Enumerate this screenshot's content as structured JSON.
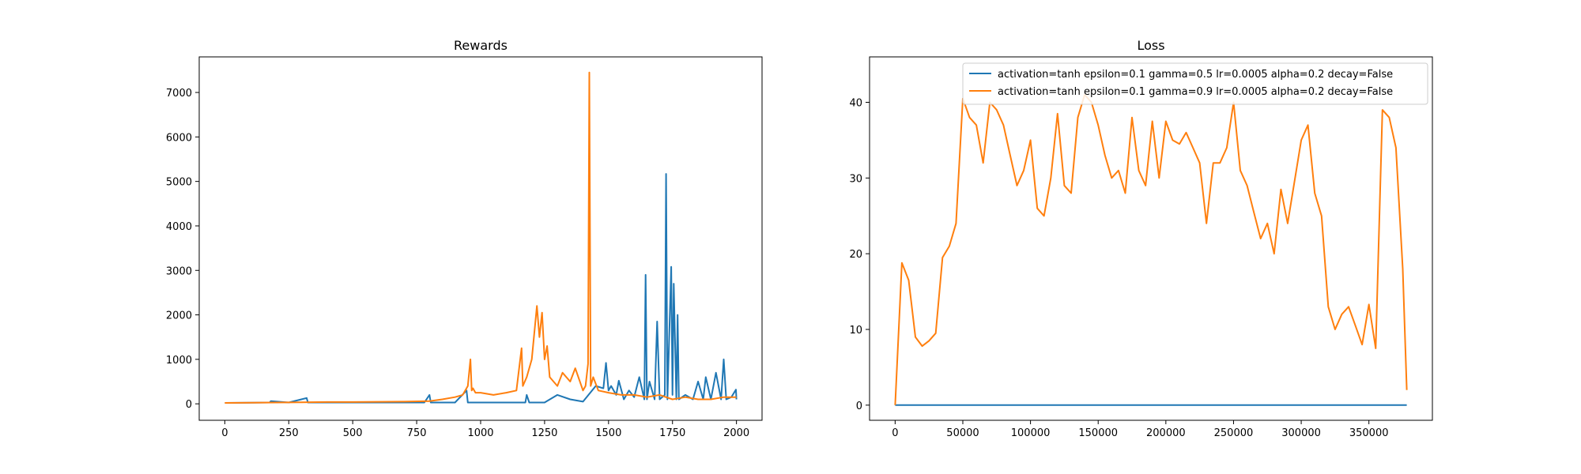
{
  "colors": {
    "series_blue": "#1f77b4",
    "series_orange": "#ff7f0e"
  },
  "chart_data": [
    {
      "type": "line",
      "title": "Rewards",
      "xlabel": "",
      "ylabel": "",
      "xlim": [
        -100,
        2100
      ],
      "ylim": [
        -370,
        7800
      ],
      "xticks": [
        0,
        250,
        500,
        750,
        1000,
        1250,
        1500,
        1750,
        2000
      ],
      "xtick_labels": [
        "0",
        "250",
        "500",
        "750",
        "1000",
        "1250",
        "1500",
        "1750",
        "2000"
      ],
      "yticks": [
        0,
        1000,
        2000,
        3000,
        4000,
        5000,
        6000,
        7000
      ],
      "ytick_labels": [
        "0",
        "1000",
        "2000",
        "3000",
        "4000",
        "5000",
        "6000",
        "7000"
      ],
      "grid": false,
      "series": [
        {
          "color": "#1f77b4",
          "x": [
            0,
            100,
            175,
            180,
            250,
            320,
            325,
            400,
            500,
            600,
            700,
            780,
            800,
            805,
            850,
            900,
            945,
            950,
            1000,
            1100,
            1175,
            1180,
            1190,
            1250,
            1300,
            1350,
            1400,
            1450,
            1480,
            1490,
            1500,
            1510,
            1530,
            1540,
            1560,
            1580,
            1600,
            1620,
            1640,
            1645,
            1650,
            1660,
            1680,
            1690,
            1700,
            1720,
            1725,
            1730,
            1745,
            1750,
            1755,
            1765,
            1770,
            1775,
            1800,
            1830,
            1850,
            1870,
            1880,
            1900,
            1920,
            1940,
            1950,
            1960,
            1980,
            1998,
            2000
          ],
          "y": [
            20,
            25,
            30,
            60,
            30,
            130,
            30,
            30,
            30,
            30,
            30,
            30,
            200,
            30,
            30,
            30,
            300,
            30,
            30,
            30,
            30,
            200,
            30,
            30,
            200,
            100,
            50,
            400,
            350,
            920,
            300,
            400,
            200,
            520,
            100,
            300,
            150,
            600,
            100,
            2900,
            100,
            500,
            100,
            1850,
            100,
            200,
            5170,
            100,
            3080,
            200,
            2700,
            100,
            2000,
            100,
            200,
            100,
            500,
            100,
            600,
            100,
            700,
            100,
            1000,
            100,
            150,
            320,
            100
          ]
        },
        {
          "color": "#ff7f0e",
          "x": [
            0,
            100,
            200,
            300,
            400,
            500,
            600,
            700,
            800,
            850,
            900,
            930,
            950,
            960,
            965,
            970,
            980,
            1000,
            1050,
            1100,
            1140,
            1160,
            1165,
            1180,
            1200,
            1220,
            1230,
            1240,
            1250,
            1260,
            1270,
            1300,
            1320,
            1350,
            1370,
            1400,
            1410,
            1420,
            1425,
            1430,
            1440,
            1460,
            1500,
            1550,
            1600,
            1650,
            1700,
            1750,
            1800,
            1850,
            1900,
            1950,
            2000
          ],
          "y": [
            20,
            25,
            30,
            35,
            40,
            40,
            45,
            50,
            60,
            100,
            150,
            200,
            400,
            1000,
            300,
            350,
            250,
            250,
            200,
            250,
            300,
            1250,
            400,
            600,
            1000,
            2200,
            1500,
            2050,
            1000,
            1300,
            600,
            400,
            700,
            500,
            800,
            300,
            400,
            900,
            7450,
            400,
            600,
            300,
            250,
            200,
            200,
            150,
            200,
            100,
            150,
            100,
            100,
            150,
            150
          ]
        }
      ]
    },
    {
      "type": "line",
      "title": "Loss",
      "xlabel": "",
      "ylabel": "",
      "xlim": [
        -18900,
        396900
      ],
      "ylim": [
        -2,
        46
      ],
      "xticks": [
        0,
        50000,
        100000,
        150000,
        200000,
        250000,
        300000,
        350000
      ],
      "xtick_labels": [
        "0",
        "50000",
        "100000",
        "150000",
        "200000",
        "250000",
        "300000",
        "350000"
      ],
      "yticks": [
        0,
        10,
        20,
        30,
        40
      ],
      "ytick_labels": [
        "0",
        "10",
        "20",
        "30",
        "40"
      ],
      "grid": false,
      "legend": "upper right",
      "series": [
        {
          "name": "activation=tanh epsilon=0.1 gamma=0.5 lr=0.0005 alpha=0.2 decay=False",
          "color": "#1f77b4",
          "x": [
            0,
            378000
          ],
          "y": [
            0,
            0
          ]
        },
        {
          "name": "activation=tanh epsilon=0.1 gamma=0.9 lr=0.0005 alpha=0.2 decay=False",
          "color": "#ff7f0e",
          "x": [
            0,
            5000,
            10000,
            15000,
            20000,
            25000,
            30000,
            35000,
            40000,
            45000,
            50000,
            55000,
            60000,
            65000,
            70000,
            75000,
            80000,
            85000,
            90000,
            95000,
            100000,
            105000,
            110000,
            115000,
            120000,
            125000,
            130000,
            135000,
            140000,
            145000,
            150000,
            155000,
            160000,
            165000,
            170000,
            175000,
            180000,
            185000,
            190000,
            195000,
            200000,
            205000,
            210000,
            215000,
            220000,
            225000,
            230000,
            235000,
            240000,
            245000,
            250000,
            255000,
            260000,
            265000,
            270000,
            275000,
            280000,
            285000,
            290000,
            295000,
            300000,
            305000,
            310000,
            315000,
            320000,
            325000,
            330000,
            335000,
            340000,
            345000,
            350000,
            355000,
            360000,
            365000,
            370000,
            375000,
            378000
          ],
          "y": [
            0,
            18.8,
            16.5,
            9,
            7.8,
            8.5,
            9.5,
            19.5,
            21,
            24,
            40.5,
            38,
            37,
            32,
            40,
            39,
            37,
            33,
            29,
            31,
            35,
            26,
            25,
            30,
            38.5,
            29,
            28,
            38,
            41,
            40,
            37,
            33,
            30,
            31,
            28,
            38,
            31,
            29,
            37.5,
            30,
            37.5,
            35,
            34.5,
            36,
            34,
            32,
            24,
            32,
            32,
            34,
            40,
            31,
            29,
            25.5,
            22,
            24,
            20,
            28.5,
            24,
            29.5,
            35,
            37,
            28,
            25,
            13,
            10,
            12,
            13,
            10.5,
            8,
            13.3,
            7.5,
            39,
            38,
            34,
            18,
            2
          ]
        }
      ]
    }
  ]
}
